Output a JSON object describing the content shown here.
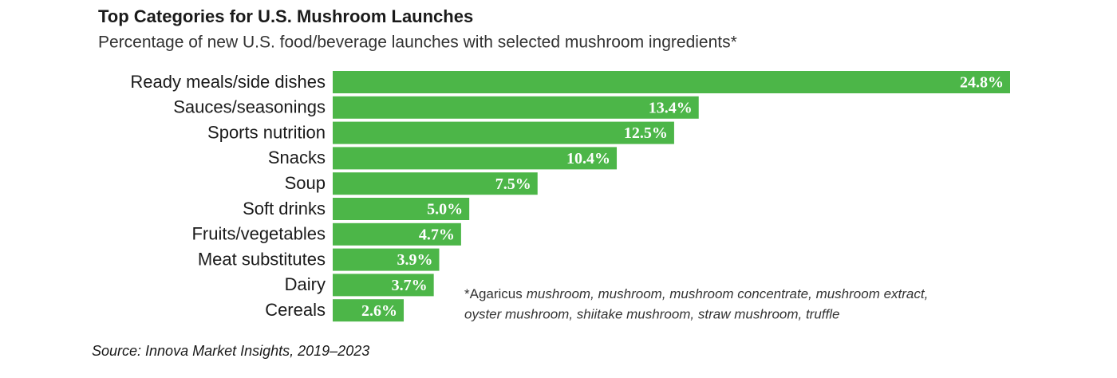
{
  "chart_data": {
    "type": "barh",
    "title": "Top Categories for U.S. Mushroom Launches",
    "subtitle": "Percentage of new U.S. food/beverage launches with selected mushroom ingredients*",
    "categories": [
      "Ready meals/side dishes",
      "Sauces/seasonings",
      "Sports nutrition",
      "Snacks",
      "Soup",
      "Soft drinks",
      "Fruits/vegetables",
      "Meat substitutes",
      "Dairy",
      "Cereals"
    ],
    "values": [
      24.8,
      13.4,
      12.5,
      10.4,
      7.5,
      5.0,
      4.7,
      3.9,
      3.7,
      2.6
    ],
    "value_labels": [
      "24.8%",
      "13.4%",
      "12.5%",
      "10.4%",
      "7.5%",
      "5.0%",
      "4.7%",
      "3.9%",
      "3.7%",
      "2.6%"
    ],
    "color": "#4cb648",
    "note": {
      "lead": "*Agaricus",
      "lines": [
        "mushroom, mushroom, mushroom concentrate, mushroom extract,",
        "oyster mushroom, shiitake mushroom, straw mushroom, truffle"
      ]
    },
    "source": "Source: Innova Market Insights, 2019–2023"
  }
}
